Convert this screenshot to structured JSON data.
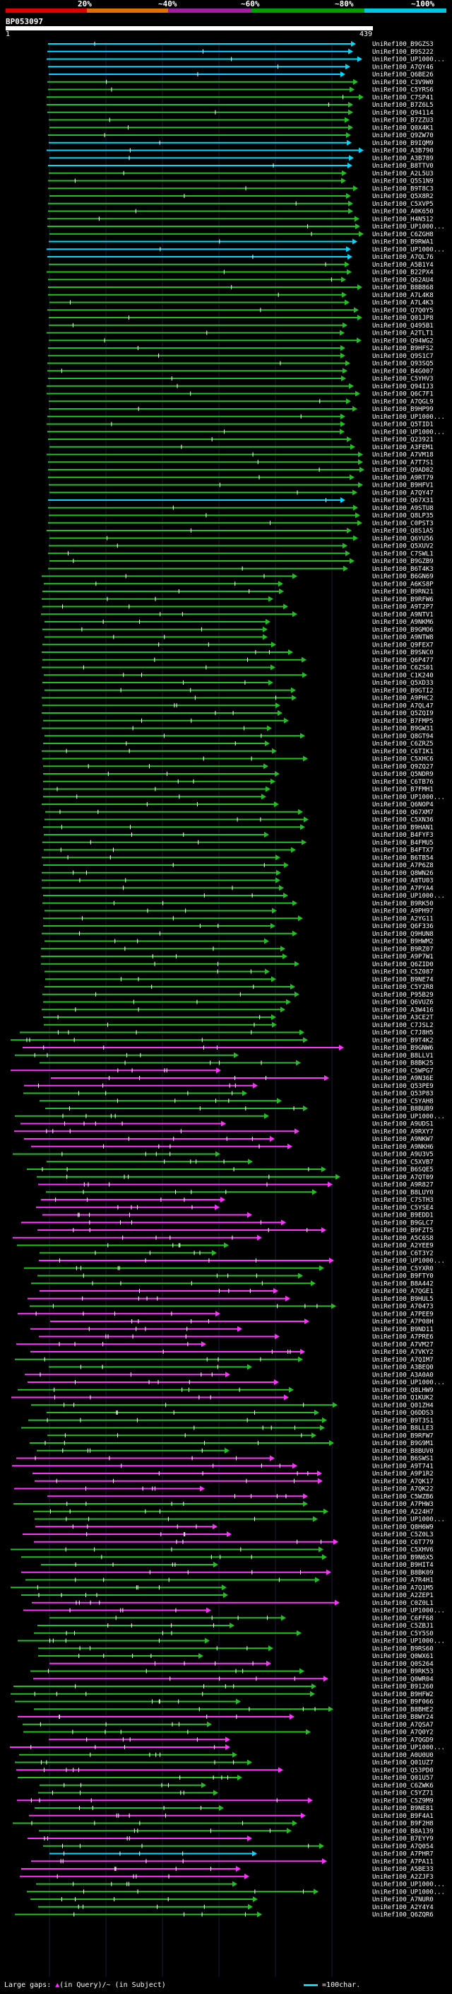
{
  "scale": {
    "labels": [
      {
        "text": "20%",
        "color": "#e00000"
      },
      {
        "text": "~40%",
        "color": "#e07000"
      },
      {
        "text": "~60%",
        "color": "#a020a0"
      },
      {
        "text": "~80%",
        "color": "#00a000"
      },
      {
        "text": "~100%",
        "color": "#00c8e0"
      }
    ]
  },
  "query": {
    "title": "BP053097",
    "start": "1",
    "end": "439"
  },
  "colors": {
    "hit": "#22c022",
    "high": "#00d8ff",
    "gap": "#ff33ff"
  },
  "hits": [
    "UniRef100_B9GZS3",
    "UniRef100_B9S222",
    "UniRef100_UP1000...",
    "UniRef100_A7QY46",
    "UniRef100_Q6BE26",
    "UniRef100_C3V9W0",
    "UniRef100_C5YRS6",
    "UniRef100_C7SP41",
    "UniRef100_B7Z6L5",
    "UniRef100_Q94114",
    "UniRef100_B7ZZU3",
    "UniRef100_Q0X4K1",
    "UniRef100_Q9ZW70",
    "UniRef100_B9IQM9",
    "UniRef100_A3B790",
    "UniRef100_A3B789",
    "UniRef100_B8TTV0",
    "UniRef100_A2L5U3",
    "UniRef100_Q5S1N9",
    "UniRef100_B9T8C3",
    "UniRef100_Q5X8R2",
    "UniRef100_C5XVP5",
    "UniRef100_A0K650",
    "UniRef100_H4N512",
    "UniRef100_UP1000...",
    "UniRef100_C6ZGH8",
    "UniRef100_B9RWA1",
    "UniRef100_UP1000...",
    "UniRef100_A7QL76",
    "UniRef100_A5B1Y4",
    "UniRef100_B22PX4",
    "UniRef100_Q62AU4",
    "UniRef100_B8B868",
    "UniRef100_A7L4K8",
    "UniRef100_A7L4K3",
    "UniRef100_Q7Q0Y5",
    "UniRef100_Q01JP8",
    "UniRef100_Q495B1",
    "UniRef100_A2TLT1",
    "UniRef100_Q94WG2",
    "UniRef100_B9HFS2",
    "UniRef100_Q9S1C7",
    "UniRef100_Q93SQ5",
    "UniRef100_B4G007",
    "UniRef100_C5YHV3",
    "UniRef100_Q94IJ3",
    "UniRef100_Q6C7F1",
    "UniRef100_A7QGL9",
    "UniRef100_B9HP99",
    "UniRef100_UP1000...",
    "UniRef100_Q5TID1",
    "UniRef100_UP1000...",
    "UniRef100_Q23921",
    "UniRef100_A3FEM1",
    "UniRef100_A7VM18",
    "UniRef100_A7T7S1",
    "UniRef100_Q9AD02",
    "UniRef100_A9RT79",
    "UniRef100_B9HFV1",
    "UniRef100_A7QY47",
    "UniRef100_Q67X31",
    "UniRef100_A9STU8",
    "UniRef100_Q8LP35",
    "UniRef100_C0PST3",
    "UniRef100_Q8S1A5",
    "UniRef100_Q6YU56",
    "UniRef100_Q5XUV2",
    "UniRef100_C7SWL1",
    "UniRef100_B9GZB9",
    "UniRef100_B6T4K3",
    "UniRef100_B6GN69",
    "UniRef100_A6KS8P",
    "UniRef100_B9RN21",
    "UniRef100_B9RFW6",
    "UniRef100_A9T2P7",
    "UniRef100_A9NTV1",
    "UniRef100_A9NKM6",
    "UniRef100_B9GMO6",
    "UniRef100_A9NTW8",
    "UniRef100_Q9FEX7",
    "UniRef100_B9SNC0",
    "UniRef100_Q6P477",
    "UniRef100_C6ZS01",
    "UniRef100_C1K240",
    "UniRef100_Q5XD33",
    "UniRef100_B9GTI2",
    "UniRef100_A9PHC2",
    "UniRef100_A7QL47",
    "UniRef100_Q5ZQI9",
    "UniRef100_B7FMP5",
    "UniRef100_B9GW31",
    "UniRef100_Q8GT94",
    "UniRef100_C6ZRZ5",
    "UniRef100_C6TIK1",
    "UniRef100_C5XHC6",
    "UniRef100_Q9ZQ27",
    "UniRef100_Q5NDR9",
    "UniRef100_C6TB76",
    "UniRef100_B7FMH1",
    "UniRef100_UP1000...",
    "UniRef100_Q6NOP4",
    "UniRef100_Q67XM7",
    "UniRef100_C5XN36",
    "UniRef100_B9HAN1",
    "UniRef100_B4FYF3",
    "UniRef100_B4FMU5",
    "UniRef100_B4FTX7",
    "UniRef100_B6TB54",
    "UniRef100_A7P6Z8",
    "UniRef100_Q8WN26",
    "UniRef100_A8TU03",
    "UniRef100_A7PYA4",
    "UniRef100_UP1000...",
    "UniRef100_B9RK50",
    "UniRef100_A9PH97",
    "UniRef100_A2YG11",
    "UniRef100_Q6F336",
    "UniRef100_Q9HUN8",
    "UniRef100_B9HWM2",
    "UniRef100_B9RZ07",
    "UniRef100_A9P7W1",
    "UniRef100_Q6ZID0",
    "UniRef100_C5Z087",
    "UniRef100_B9NE74",
    "UniRef100_C5Y2R8",
    "UniRef100_P95B29",
    "UniRef100_Q6VUZ6",
    "UniRef100_A3W416",
    "UniRef100_A3CE2T",
    "UniRef100_C7JSL2",
    "UniRef100_C7J8H5",
    "UniRef100_B9T4K2",
    "UniRef100_B9GNW6",
    "UniRef100_B8LLV1",
    "UniRef100_B8BK25",
    "UniRef100_C5WPG7",
    "UniRef100_A9N36E",
    "UniRef100_Q53PE9",
    "UniRef100_Q53P83",
    "UniRef100_C5YAH8",
    "UniRef100_B8BUB9",
    "UniRef100_UP1000...",
    "UniRef100_A9UDS1",
    "UniRef100_A9RXY7",
    "UniRef100_A9NKW7",
    "UniRef100_A9NKH6",
    "UniRef100_A9U3V5",
    "UniRef100_C5XVB7",
    "UniRef100_B6SQE5",
    "UniRef100_A7QT09",
    "UniRef100_A9R827",
    "UniRef100_B8LUY0",
    "UniRef100_C7STH3",
    "UniRef100_C5YSE4",
    "UniRef100_B9EDD1",
    "UniRef100_B9GLC7",
    "UniRef100_B9FZT5",
    "UniRef100_A5C6S8",
    "UniRef100_A2YEE9",
    "UniRef100_C6T3Y2",
    "UniRef100_UP1000...",
    "UniRef100_C5YXR0",
    "UniRef100_B9FTY0",
    "UniRef100_B8A442",
    "UniRef100_A7QGE1",
    "UniRef100_B9HUL5",
    "UniRef100_A70473",
    "UniRef100_A7PEE9",
    "UniRef100_A7P08H",
    "UniRef100_B9ND11",
    "UniRef100_A7PRE6",
    "UniRef100_A7VM27",
    "UniRef100_A7VKY2",
    "UniRef100_A7QIM7",
    "UniRef100_A3BEQ0",
    "UniRef100_A3A0A0",
    "UniRef100_UP1000...",
    "UniRef100_Q8LHW9",
    "UniRef100_Q1KUK2",
    "UniRef100_Q01ZH4",
    "UniRef100_Q6DDS3",
    "UniRef100_B9T3S1",
    "UniRef100_B8LLE3",
    "UniRef100_B9RFW7",
    "UniRef100_B9G9M1",
    "UniRef100_B8BUV0",
    "UniRef100_B6SWS1",
    "UniRef100_A9T741",
    "UniRef100_A9P1R2",
    "UniRef100_A7QK17",
    "UniRef100_A7QK22",
    "UniRef100_C5WZB6",
    "UniRef100_A7PHW3",
    "UniRef100_A224H7",
    "UniRef100_UP1000...",
    "UniRef100_Q8H6W9",
    "UniRef100_C5Z0L3",
    "UniRef100_C6T779",
    "UniRef100_C5XHV6",
    "UniRef100_B9N6X5",
    "UniRef100_B9HIT4",
    "UniRef100_B8BK09",
    "UniRef100_A7R4H1",
    "UniRef100_A7Q1M5",
    "UniRef100_A2ZEP1",
    "UniRef100_C0Z0L1",
    "UniRef100_UP1000...",
    "UniRef100_C6FF68",
    "UniRef100_C5ZBJ1",
    "UniRef100_C5Y5S0",
    "UniRef100_UP1000...",
    "UniRef100_B9RS60",
    "UniRef100_Q0WX61",
    "UniRef100_Q0S264",
    "UniRef100_B9RK53",
    "UniRef100_Q0WR04",
    "UniRef100_B91260",
    "UniRef100_B9HFW2",
    "UniRef100_B9F066",
    "UniRef100_B8BHE2",
    "UniRef100_B8WY24",
    "UniRef100_A7QSA7",
    "UniRef100_A7Q0Y2",
    "UniRef100_A7QGD9",
    "UniRef100_UP1000...",
    "UniRef100_A0U0U0",
    "UniRef100_Q01UZ7",
    "UniRef100_Q53PD0",
    "UniRef100_Q01U57",
    "UniRef100_C6ZWK6",
    "UniRef100_C5YZ71",
    "UniRef100_C5Z9M9",
    "UniRef100_B9NE81",
    "UniRef100_B9F4A1",
    "UniRef100_B9F2H8",
    "UniRef100_B8A139",
    "UniRef100_B7EYY9",
    "UniRef100_A7Q054",
    "UniRef100_A7PHR7",
    "UniRef100_A7PA11",
    "UniRef100_A5BE33",
    "UniRef100_A2ZJF3",
    "UniRef100_UP1000...",
    "UniRef100_UP1000...",
    "UniRef100_A7NUR0",
    "UniRef100_A2Y4Y4",
    "UniRef100_Q6ZQR6"
  ],
  "footer": {
    "text_before": "Large gaps: ",
    "marker": "▲",
    "text_after": "(in Query)/~ (in Subject)",
    "legend": "=100char."
  }
}
